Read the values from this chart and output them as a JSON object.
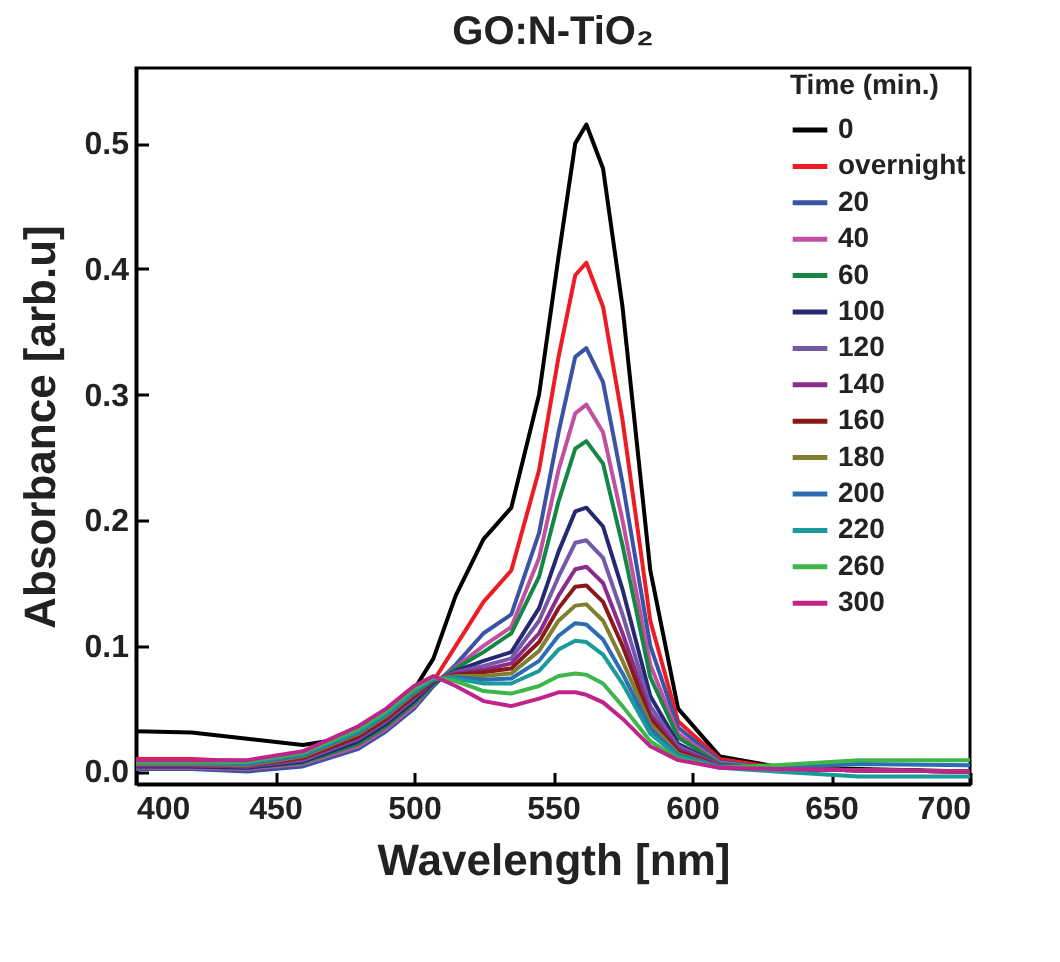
{
  "chart_data": {
    "type": "line",
    "title": "GO:N-TiO₂",
    "xlabel": "Wavelength [nm]",
    "ylabel": "Absorbance [arb.u]",
    "legend_title": "Time (min.)",
    "legend": "top right",
    "grid": false,
    "line_style": "solid",
    "x": [
      400,
      420,
      440,
      460,
      480,
      490,
      500,
      507,
      515,
      525,
      535,
      545,
      552,
      558,
      562,
      568,
      575,
      585,
      595,
      610,
      630,
      660,
      700
    ],
    "xlim": [
      400,
      700
    ],
    "xticks": [
      400,
      450,
      500,
      550,
      600,
      650,
      700
    ],
    "ylim": [
      -0.01,
      0.56
    ],
    "yticks": [
      {
        "value": 0,
        "label": "0.0"
      },
      0.1,
      0.2,
      0.3,
      0.4,
      0.5
    ],
    "series": [
      {
        "name": "0",
        "color": "#000000",
        "values": [
          0.032,
          0.031,
          0.026,
          0.021,
          0.028,
          0.04,
          0.065,
          0.09,
          0.14,
          0.185,
          0.21,
          0.3,
          0.41,
          0.5,
          0.515,
          0.48,
          0.37,
          0.16,
          0.05,
          0.012,
          0.004,
          0.002,
          0.0
        ]
      },
      {
        "name": "overnight",
        "color": "#ed1c24",
        "values": [
          0.01,
          0.01,
          0.008,
          0.012,
          0.025,
          0.04,
          0.06,
          0.072,
          0.1,
          0.135,
          0.16,
          0.24,
          0.33,
          0.395,
          0.405,
          0.37,
          0.28,
          0.12,
          0.04,
          0.01,
          0.003,
          0.001,
          0.0
        ]
      },
      {
        "name": "20",
        "color": "#3a53a4",
        "values": [
          0.002,
          0.002,
          0.0,
          0.004,
          0.018,
          0.032,
          0.05,
          0.068,
          0.085,
          0.11,
          0.125,
          0.19,
          0.27,
          0.33,
          0.337,
          0.31,
          0.23,
          0.1,
          0.035,
          0.008,
          0.002,
          0.001,
          0.0
        ]
      },
      {
        "name": "40",
        "color": "#c150a0",
        "values": [
          0.003,
          0.003,
          0.002,
          0.006,
          0.02,
          0.034,
          0.052,
          0.07,
          0.083,
          0.1,
          0.115,
          0.17,
          0.24,
          0.285,
          0.292,
          0.27,
          0.2,
          0.085,
          0.03,
          0.007,
          0.002,
          0.001,
          0.0
        ]
      },
      {
        "name": "60",
        "color": "#158744",
        "values": [
          0.004,
          0.004,
          0.003,
          0.007,
          0.022,
          0.036,
          0.054,
          0.07,
          0.082,
          0.095,
          0.11,
          0.155,
          0.215,
          0.257,
          0.263,
          0.245,
          0.18,
          0.075,
          0.027,
          0.006,
          0.002,
          0.001,
          0.0
        ]
      },
      {
        "name": "100",
        "color": "#262872",
        "values": [
          0.004,
          0.004,
          0.003,
          0.008,
          0.024,
          0.038,
          0.056,
          0.071,
          0.08,
          0.088,
          0.095,
          0.13,
          0.175,
          0.207,
          0.21,
          0.195,
          0.145,
          0.06,
          0.022,
          0.005,
          0.002,
          0.001,
          0.0
        ]
      },
      {
        "name": "120",
        "color": "#7359a6",
        "values": [
          0.005,
          0.005,
          0.004,
          0.009,
          0.026,
          0.04,
          0.058,
          0.072,
          0.079,
          0.084,
          0.09,
          0.12,
          0.155,
          0.182,
          0.184,
          0.17,
          0.125,
          0.052,
          0.02,
          0.005,
          0.002,
          0.001,
          0.0
        ]
      },
      {
        "name": "140",
        "color": "#8b2c8c",
        "values": [
          0.005,
          0.005,
          0.004,
          0.01,
          0.027,
          0.041,
          0.059,
          0.072,
          0.078,
          0.081,
          0.086,
          0.11,
          0.14,
          0.161,
          0.163,
          0.15,
          0.11,
          0.046,
          0.018,
          0.005,
          0.002,
          0.001,
          0.0
        ]
      },
      {
        "name": "160",
        "color": "#8a1a1a",
        "values": [
          0.006,
          0.006,
          0.005,
          0.011,
          0.028,
          0.042,
          0.06,
          0.072,
          0.077,
          0.079,
          0.082,
          0.103,
          0.13,
          0.147,
          0.148,
          0.135,
          0.1,
          0.042,
          0.016,
          0.004,
          0.002,
          0.001,
          0.0
        ]
      },
      {
        "name": "180",
        "color": "#7f7f2f",
        "values": [
          0.006,
          0.006,
          0.005,
          0.012,
          0.03,
          0.044,
          0.062,
          0.073,
          0.076,
          0.076,
          0.078,
          0.096,
          0.12,
          0.132,
          0.133,
          0.12,
          0.088,
          0.038,
          0.014,
          0.004,
          0.002,
          0.001,
          0.0
        ]
      },
      {
        "name": "200",
        "color": "#2c6db5",
        "values": [
          0.007,
          0.007,
          0.006,
          0.013,
          0.031,
          0.045,
          0.063,
          0.073,
          0.075,
          0.073,
          0.074,
          0.088,
          0.108,
          0.118,
          0.117,
          0.105,
          0.078,
          0.034,
          0.013,
          0.004,
          0.004,
          0.006,
          0.005
        ]
      },
      {
        "name": "220",
        "color": "#1a9a9a",
        "values": [
          0.007,
          0.007,
          0.007,
          0.014,
          0.032,
          0.046,
          0.064,
          0.074,
          0.074,
          0.07,
          0.07,
          0.08,
          0.097,
          0.104,
          0.103,
          0.093,
          0.07,
          0.03,
          0.012,
          0.003,
          0.0,
          -0.004,
          -0.004
        ]
      },
      {
        "name": "260",
        "color": "#3fb64a",
        "values": [
          0.008,
          0.008,
          0.008,
          0.015,
          0.034,
          0.048,
          0.066,
          0.075,
          0.072,
          0.064,
          0.062,
          0.068,
          0.076,
          0.078,
          0.077,
          0.07,
          0.052,
          0.024,
          0.01,
          0.003,
          0.005,
          0.009,
          0.009
        ]
      },
      {
        "name": "300",
        "color": "#c0248a",
        "values": [
          0.009,
          0.009,
          0.009,
          0.016,
          0.036,
          0.05,
          0.068,
          0.076,
          0.068,
          0.056,
          0.052,
          0.058,
          0.063,
          0.063,
          0.061,
          0.055,
          0.042,
          0.02,
          0.009,
          0.003,
          0.002,
          0.001,
          0.0
        ]
      }
    ]
  }
}
